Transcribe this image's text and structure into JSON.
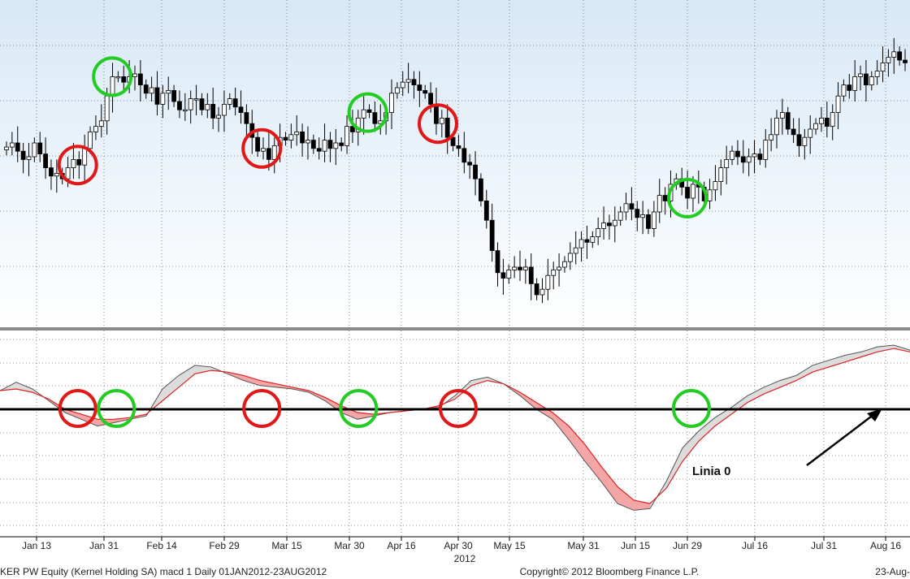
{
  "chart_data": [
    {
      "type": "candlestick",
      "x_labels": [
        "Jan 13",
        "Jan 31",
        "Feb 14",
        "Feb 29",
        "Mar 15",
        "Mar 30",
        "Apr 16",
        "Apr 30",
        "May 15",
        "May 31",
        "Jun 15",
        "Jun 29",
        "Jul 16",
        "Jul 31",
        "Aug 16"
      ],
      "year_label": "2012",
      "grid": true,
      "background": [
        "#d8e8f6",
        "#ffffff"
      ],
      "up_candle_color": "#ffffff",
      "down_candle_color": "#000000",
      "closes": [
        115.5,
        117,
        114,
        111,
        112,
        117,
        113,
        108,
        105,
        106,
        104,
        108,
        111,
        109,
        115,
        121,
        123,
        125,
        134,
        141,
        141,
        139,
        141,
        142,
        138,
        135,
        137,
        131,
        135,
        136,
        132,
        129,
        129,
        133,
        133,
        129,
        131,
        126,
        127,
        131,
        133,
        130,
        128,
        124,
        119,
        114,
        115,
        111,
        116,
        119,
        118,
        120,
        121,
        117,
        118,
        115,
        114,
        118,
        115,
        117,
        116,
        123,
        121,
        126,
        129,
        128,
        124,
        125,
        128,
        135,
        137,
        139,
        140,
        138,
        136,
        135,
        131,
        124,
        126,
        119,
        116,
        115,
        110,
        109,
        104,
        96,
        89,
        78,
        70,
        68,
        71,
        72,
        71,
        72,
        66,
        62,
        64,
        69,
        71,
        72,
        74,
        77,
        79,
        82,
        81,
        83,
        86,
        88,
        87,
        89,
        92,
        95,
        93,
        90,
        91,
        86,
        92,
        98,
        96,
        102,
        104,
        101,
        97,
        102,
        101,
        96,
        100,
        103,
        108,
        111,
        114,
        112,
        110,
        112,
        113,
        111,
        118,
        120,
        126,
        128,
        122,
        120,
        116,
        119,
        122,
        124,
        126,
        123,
        128,
        134,
        138,
        136,
        141,
        142,
        138,
        141,
        143,
        146,
        148,
        150,
        147,
        146
      ],
      "price_ylim": [
        57,
        157
      ],
      "annotations": {
        "red_circles": [
          "Jan 24",
          "Mar 9",
          "Apr 25"
        ],
        "green_circles": [
          "Feb 2",
          "Apr 5",
          "Jun 29"
        ]
      }
    },
    {
      "type": "line",
      "title": "macd 1",
      "series": [
        {
          "color": "#555555",
          "values": [
            0.9,
            1.4,
            1.0,
            0.3,
            -0.4,
            -0.8,
            -1.2,
            -1.0,
            -0.8,
            -0.6,
            1.0,
            1.8,
            2.4,
            2.3,
            1.9,
            1.5,
            1.2,
            1.1,
            1.0,
            0.8,
            0.3,
            -0.4,
            -0.8,
            -0.6,
            -0.4,
            -0.3,
            -0.2,
            -0.1,
            0.6,
            1.5,
            1.7,
            1.3,
            0.6,
            -0.2,
            -0.8,
            -2.0,
            -3.3,
            -4.5,
            -5.8,
            -6.2,
            -6.1,
            -4.5,
            -2.5,
            -1.5,
            -0.7,
            -0.1,
            0.6,
            1.1,
            1.5,
            1.8,
            2.4,
            2.7,
            3.0,
            3.2,
            3.5,
            3.6,
            3.3
          ]
        },
        {
          "color": "#dd2222",
          "values": [
            0.9,
            1.0,
            0.8,
            0.4,
            -0.2,
            -0.5,
            -0.8,
            -0.8,
            -0.7,
            -0.5,
            0.3,
            1.1,
            1.9,
            2.1,
            2.0,
            1.8,
            1.5,
            1.3,
            1.1,
            0.9,
            0.5,
            0.0,
            -0.4,
            -0.5,
            -0.4,
            -0.3,
            -0.2,
            0.0,
            0.4,
            1.2,
            1.5,
            1.3,
            0.8,
            0.2,
            -0.4,
            -1.2,
            -2.3,
            -3.6,
            -4.8,
            -5.6,
            -5.8,
            -4.9,
            -3.3,
            -2.1,
            -1.2,
            -0.5,
            0.2,
            0.7,
            1.1,
            1.5,
            2.0,
            2.3,
            2.6,
            2.9,
            3.2,
            3.4,
            3.2
          ]
        }
      ],
      "ylim": [
        -7,
        3.6
      ],
      "zero_line": true,
      "annotation_text": "Linia 0",
      "annotations": {
        "red_circles": [
          "Jan 24",
          "Mar 9",
          "Apr 30"
        ],
        "green_circles": [
          "Feb 3",
          "Apr 2",
          "Jun 30"
        ]
      }
    }
  ],
  "footer": {
    "left": "KER PW Equity (Kernel Holding SA) macd 1  Daily 01JAN2012-23AUG2012",
    "center": "Copyright© 2012 Bloomberg Finance L.P.",
    "right": "23-Aug-"
  }
}
